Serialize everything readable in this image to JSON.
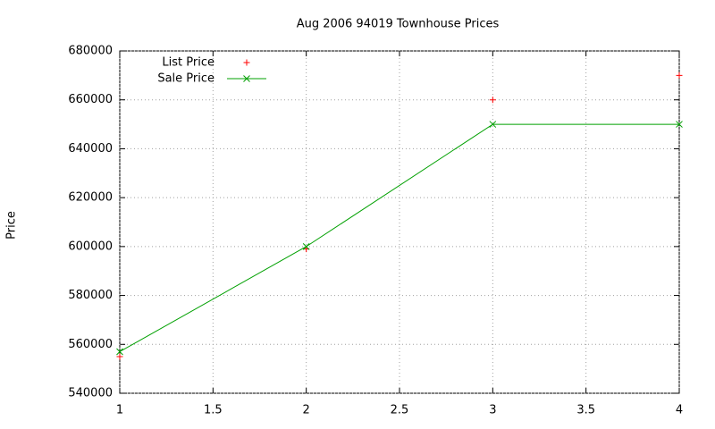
{
  "chart_data": {
    "type": "line",
    "title": "Aug 2006 94019 Townhouse Prices",
    "y_label": "Price",
    "x": [
      1,
      2,
      3,
      4
    ],
    "series": [
      {
        "name": "List Price",
        "color": "#ff0000",
        "style": "points",
        "marker": "plus",
        "values": [
          555000,
          599000,
          660000,
          670000
        ]
      },
      {
        "name": "Sale Price",
        "color": "#00a000",
        "style": "linespoints",
        "marker": "cross",
        "values": [
          557000,
          600000,
          650000,
          650000
        ]
      }
    ],
    "xlim": [
      1,
      4
    ],
    "xticks": [
      1,
      1.5,
      2,
      2.5,
      3,
      3.5,
      4
    ],
    "ylim": [
      540000,
      680000
    ],
    "yticks": [
      540000,
      560000,
      580000,
      600000,
      620000,
      640000,
      660000,
      680000
    ],
    "grid": true,
    "legend": "top-left"
  }
}
